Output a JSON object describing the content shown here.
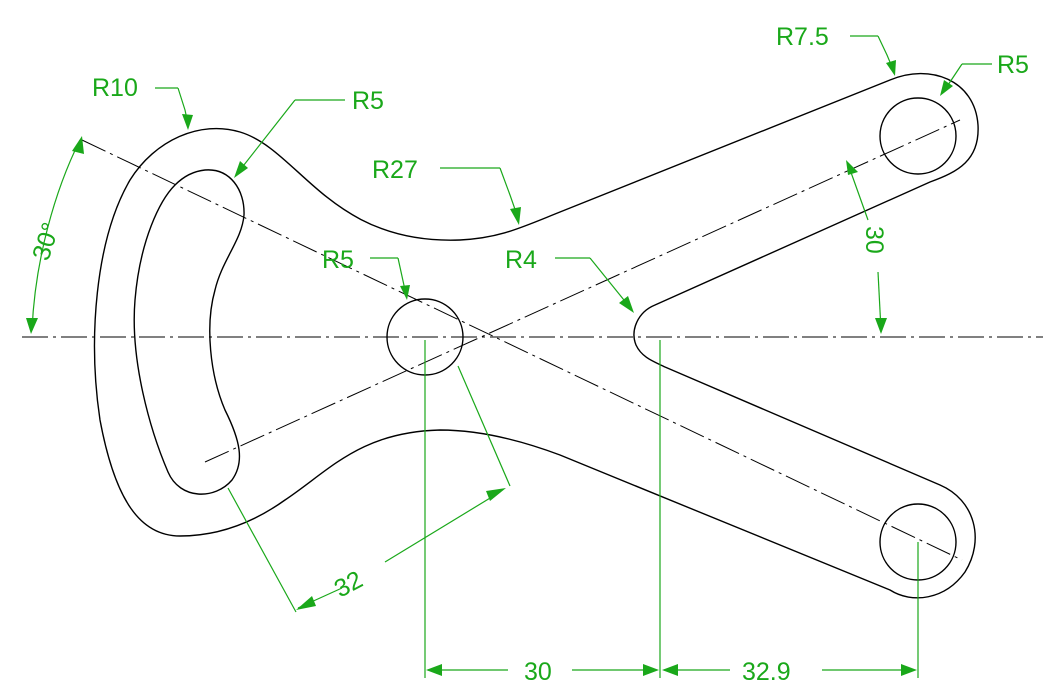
{
  "drawing": {
    "colors": {
      "outline": "#000000",
      "dimension": "#1aa81a",
      "background": "#ffffff"
    },
    "labels": {
      "r10": "R10",
      "r5_slot": "R5",
      "r27": "R27",
      "r5_center": "R5",
      "r4": "R4",
      "r7_5": "R7.5",
      "r5_right": "R5",
      "angle": "30°",
      "vert_30": "30",
      "slot_32": "32",
      "horiz_30": "30",
      "horiz_32_9": "32.9"
    }
  }
}
